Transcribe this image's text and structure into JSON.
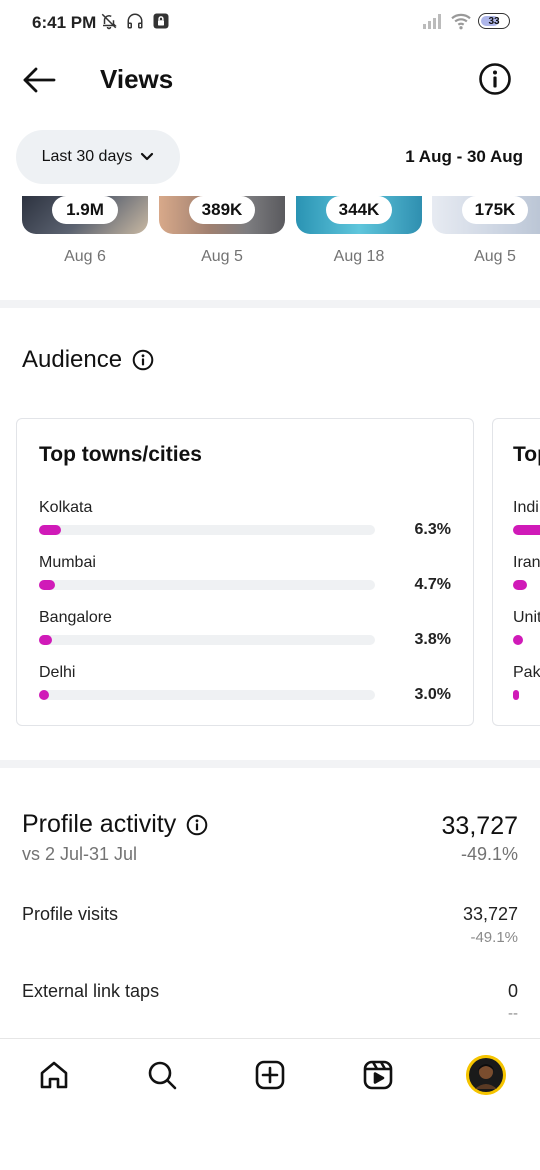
{
  "status_bar": {
    "time": "6:41 PM",
    "battery": "33"
  },
  "header": {
    "title": "Views"
  },
  "filter": {
    "range_label": "Last 30 days",
    "date_range": "1 Aug - 30 Aug"
  },
  "top_content": [
    {
      "value": "1.9M",
      "date": "Aug 6"
    },
    {
      "value": "389K",
      "date": "Aug 5"
    },
    {
      "value": "344K",
      "date": "Aug 18"
    },
    {
      "value": "175K",
      "date": "Aug 5"
    }
  ],
  "audience": {
    "title": "Audience",
    "top_cities": {
      "title": "Top towns/cities",
      "items": [
        {
          "name": "Kolkata",
          "pct": "6.3%",
          "fraction": 0.063
        },
        {
          "name": "Mumbai",
          "pct": "4.7%",
          "fraction": 0.047
        },
        {
          "name": "Bangalore",
          "pct": "3.8%",
          "fraction": 0.038
        },
        {
          "name": "Delhi",
          "pct": "3.0%",
          "fraction": 0.03
        }
      ]
    },
    "top_countries_partial": {
      "title": "Top",
      "items": [
        "Indi",
        "Iran",
        "Unit",
        "Pak"
      ]
    }
  },
  "profile_activity": {
    "title": "Profile activity",
    "comparison": "vs 2 Jul-31 Jul",
    "total": "33,727",
    "change": "-49.1%",
    "metrics": [
      {
        "label": "Profile visits",
        "value": "33,727",
        "change": "-49.1%"
      },
      {
        "label": "External link taps",
        "value": "0",
        "change": "--"
      }
    ]
  },
  "colors": {
    "accent_bar": "#d01ab8",
    "pill_bg": "#eef1f4",
    "muted_text": "#737373"
  },
  "icons": {
    "back": "arrow-left-icon",
    "info": "info-icon",
    "chevron": "chevron-down-icon",
    "nav": [
      "home-icon",
      "search-icon",
      "create-icon",
      "reels-icon",
      "profile-avatar"
    ]
  }
}
